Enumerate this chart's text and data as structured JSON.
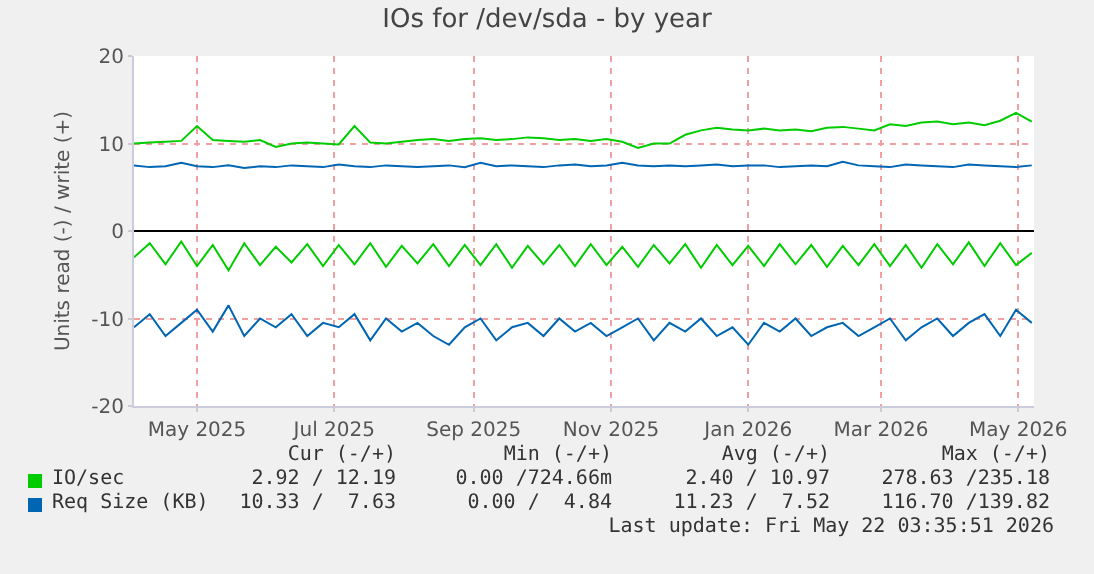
{
  "chart_data": {
    "type": "line",
    "title": "IOs for /dev/sda - by year",
    "ylabel": "Units read (-) / write (+)",
    "x": [
      "2025-04-03",
      "2025-04-10",
      "2025-04-17",
      "2025-04-24",
      "2025-05-01",
      "2025-05-08",
      "2025-05-15",
      "2025-05-22",
      "2025-05-29",
      "2025-06-05",
      "2025-06-12",
      "2025-06-19",
      "2025-06-26",
      "2025-07-03",
      "2025-07-10",
      "2025-07-17",
      "2025-07-24",
      "2025-07-31",
      "2025-08-07",
      "2025-08-14",
      "2025-08-21",
      "2025-08-28",
      "2025-09-04",
      "2025-09-11",
      "2025-09-18",
      "2025-09-25",
      "2025-10-02",
      "2025-10-09",
      "2025-10-16",
      "2025-10-23",
      "2025-10-30",
      "2025-11-06",
      "2025-11-13",
      "2025-11-20",
      "2025-11-27",
      "2025-12-04",
      "2025-12-11",
      "2025-12-18",
      "2025-12-25",
      "2026-01-01",
      "2026-01-08",
      "2026-01-15",
      "2026-01-22",
      "2026-01-29",
      "2026-02-05",
      "2026-02-12",
      "2026-02-19",
      "2026-02-26",
      "2026-03-05",
      "2026-03-12",
      "2026-03-19",
      "2026-03-26",
      "2026-04-02",
      "2026-04-09",
      "2026-04-16",
      "2026-04-23",
      "2026-04-30",
      "2026-05-07"
    ],
    "series": [
      {
        "name": "IO/sec",
        "color": "#00cc00",
        "values": [
          10,
          10.1,
          10.2,
          10.3,
          12,
          10.4,
          10.3,
          10.2,
          10.4,
          9.6,
          10,
          10.1,
          10,
          9.9,
          12,
          10.1,
          10,
          10.2,
          10.4,
          10.5,
          10.3,
          10.5,
          10.6,
          10.4,
          10.5,
          10.7,
          10.6,
          10.4,
          10.5,
          10.3,
          10.5,
          10.2,
          9.5,
          10,
          10,
          11,
          11.5,
          11.8,
          11.6,
          11.5,
          11.7,
          11.5,
          11.6,
          11.4,
          11.8,
          11.9,
          11.7,
          11.5,
          12.2,
          12,
          12.4,
          12.5,
          12.2,
          12.4,
          12.1,
          12.6,
          13.5,
          12.5
        ]
      },
      {
        "color": "#00cc00",
        "values": [
          -3,
          -1.4,
          -3.8,
          -1.2,
          -4,
          -1.6,
          -4.5,
          -1.4,
          -3.9,
          -1.8,
          -3.6,
          -1.5,
          -4,
          -1.6,
          -3.8,
          -1.4,
          -4.1,
          -1.7,
          -3.7,
          -1.5,
          -4,
          -1.6,
          -3.9,
          -1.5,
          -4.2,
          -1.7,
          -3.8,
          -1.6,
          -4,
          -1.5,
          -3.9,
          -1.8,
          -4.1,
          -1.6,
          -3.7,
          -1.5,
          -4.2,
          -1.6,
          -3.9,
          -1.7,
          -4,
          -1.5,
          -3.8,
          -1.6,
          -4.1,
          -1.7,
          -3.9,
          -1.5,
          -4,
          -1.6,
          -4.2,
          -1.5,
          -3.8,
          -1.3,
          -4,
          -1.4,
          -3.9,
          -2.5
        ]
      },
      {
        "name": "Req Size (KB)",
        "color": "#0066b3",
        "values": [
          7.5,
          7.3,
          7.4,
          7.8,
          7.4,
          7.3,
          7.5,
          7.2,
          7.4,
          7.3,
          7.5,
          7.4,
          7.3,
          7.6,
          7.4,
          7.3,
          7.5,
          7.4,
          7.3,
          7.4,
          7.5,
          7.3,
          7.8,
          7.4,
          7.5,
          7.4,
          7.3,
          7.5,
          7.6,
          7.4,
          7.5,
          7.8,
          7.5,
          7.4,
          7.5,
          7.4,
          7.5,
          7.6,
          7.4,
          7.5,
          7.5,
          7.3,
          7.4,
          7.5,
          7.4,
          7.9,
          7.5,
          7.4,
          7.3,
          7.6,
          7.5,
          7.4,
          7.3,
          7.6,
          7.5,
          7.4,
          7.3,
          7.5
        ]
      },
      {
        "color": "#0066b3",
        "values": [
          -11,
          -9.5,
          -12,
          -10.5,
          -9,
          -11.5,
          -8.5,
          -12,
          -10,
          -11,
          -9.5,
          -12,
          -10.5,
          -11,
          -9.5,
          -12.5,
          -10,
          -11.5,
          -10.5,
          -12,
          -13,
          -11,
          -10,
          -12.5,
          -11,
          -10.5,
          -12,
          -10,
          -11.5,
          -10.5,
          -12,
          -11,
          -10,
          -12.5,
          -10.5,
          -11.5,
          -10,
          -12,
          -11,
          -13,
          -10.5,
          -11.5,
          -10,
          -12,
          -11,
          -10.5,
          -12,
          -11,
          -10,
          -12.5,
          -11,
          -10,
          -12,
          -10.5,
          -9.5,
          -12,
          -9,
          -10.5
        ]
      }
    ],
    "xlim": [
      "2025-04-03",
      "2026-05-08"
    ],
    "xticks": [
      {
        "value": "2025-05-01",
        "label": "May 2025"
      },
      {
        "value": "2025-07-01",
        "label": "Jul 2025"
      },
      {
        "value": "2025-09-01",
        "label": "Sep 2025"
      },
      {
        "value": "2025-11-01",
        "label": "Nov 2025"
      },
      {
        "value": "2026-01-01",
        "label": "Jan 2026"
      },
      {
        "value": "2026-03-01",
        "label": "Mar 2026"
      },
      {
        "value": "2026-05-01",
        "label": "May 2026"
      }
    ],
    "ylim": [
      -20,
      20
    ],
    "yticks": [
      -20,
      -10,
      0,
      10,
      20
    ],
    "grid": true,
    "legend": "bottom",
    "annotations": [
      "Cur (-/+)",
      "Min (-/+)",
      "Avg (-/+)",
      "Max (-/+)",
      "2.92 / 12.19",
      "0.00 /724.66m",
      "2.40 / 10.97",
      "278.63 /235.18",
      "10.33 /  7.63",
      "0.00 /  4.84",
      "11.23 /  7.52",
      "116.70 /139.82",
      "Last update: Fri May 22 03:35:51 2026"
    ]
  }
}
